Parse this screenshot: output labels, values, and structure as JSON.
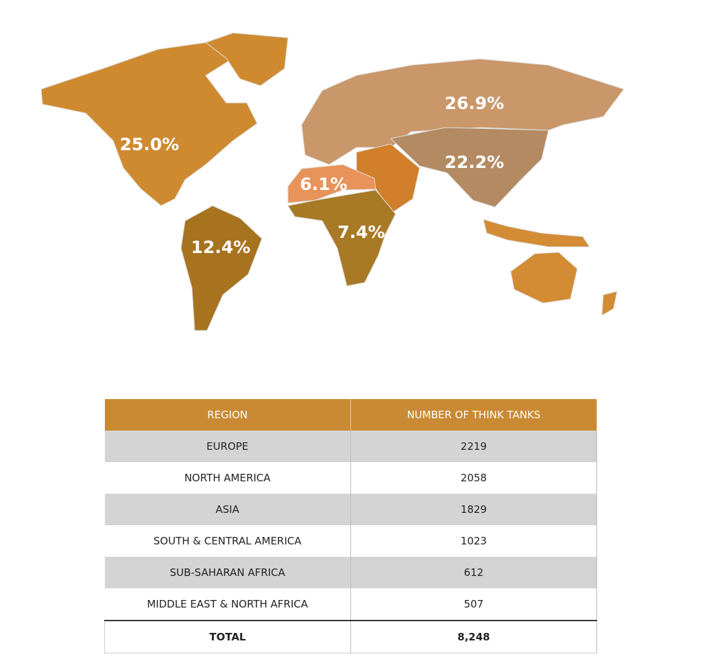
{
  "map": {
    "regions": [
      {
        "label": "25.0%"
      },
      {
        "label": "12.4%"
      },
      {
        "label": "6.1%"
      },
      {
        "label": "7.4%"
      },
      {
        "label": "26.9%"
      },
      {
        "label": "22.2%"
      }
    ]
  },
  "table": {
    "header": [
      "REGION",
      "NUMBER OF THINK TANKS"
    ],
    "rows": [
      [
        "EUROPE",
        2219
      ],
      [
        "NORTH AMERICA",
        2058
      ],
      [
        "ASIA",
        1829
      ],
      [
        "SOUTH & CENTRAL AMERICA",
        1023
      ],
      [
        "SUB-SAHARAN AFRICA",
        612
      ],
      [
        "MIDDLE EAST & NORTH AFRICA",
        507
      ]
    ],
    "total": [
      "TOTAL",
      "8,248"
    ]
  }
}
